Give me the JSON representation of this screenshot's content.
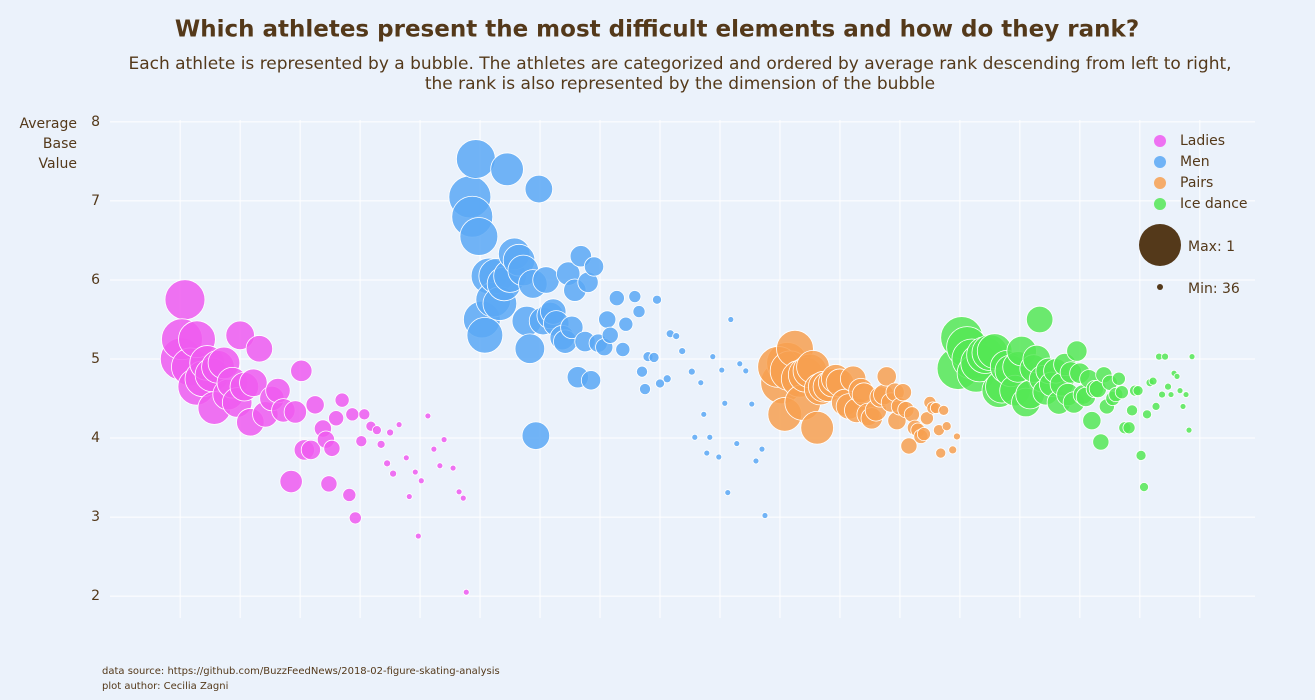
{
  "chart_data": {
    "type": "bubble",
    "title": "Which athletes present the most difficult elements and how do they rank?",
    "subtitle": [
      "Each athlete is represented by a bubble. The athletes are categorized and ordered by average rank descending from left to right,",
      "the rank is also represented by the dimension of the bubble"
    ],
    "y_label": "Average Base Value",
    "ylim": [
      1.85,
      8.15
    ],
    "yticks": [
      2,
      3,
      4,
      5,
      6,
      7,
      8
    ],
    "xlim": [
      -11.7,
      179.2
    ],
    "xticks": [
      0,
      10,
      20,
      30,
      40,
      50,
      60,
      70,
      80,
      90,
      100,
      110,
      120,
      130,
      140,
      150,
      160,
      170
    ],
    "grid": true,
    "legend": "top-right",
    "size_legend": [
      {
        "value": 1,
        "label": "Max: 1"
      },
      {
        "value": 36,
        "label": "Min: 36"
      }
    ],
    "size_color": "#54391a",
    "notes": [
      "data source: https://github.com/BuzzFeedNews/2018-02-figure-skating-analysis",
      "plot author: Cecilia Zagni"
    ],
    "series": [
      {
        "name": "Ladies",
        "color": "#ef5bf0",
        "x": [
          0.2,
          0.8,
          0.3,
          1.7,
          2.8,
          2.7,
          3.8,
          4.5,
          5.3,
          5.7,
          6.3,
          7.3,
          8.0,
          8.7,
          9.5,
          10.0,
          10.7,
          11.7,
          12.2,
          13.2,
          14.2,
          15.3,
          16.3,
          17.2,
          18.5,
          19.2,
          20.2,
          20.7,
          21.8,
          22.5,
          23.8,
          24.3,
          24.8,
          25.3,
          26.0,
          27.0,
          28.2,
          28.7,
          29.2,
          30.2,
          30.7,
          31.8,
          32.8,
          33.5,
          34.5,
          35.0,
          35.5,
          36.5,
          37.7,
          38.2,
          39.2,
          39.7,
          40.2,
          41.3,
          42.3,
          43.3,
          44.0,
          45.5,
          46.5,
          47.2,
          47.7
        ],
        "values": [
          5.0,
          5.75,
          5.25,
          4.9,
          5.25,
          4.65,
          4.75,
          4.95,
          4.8,
          4.38,
          4.9,
          4.95,
          4.55,
          4.7,
          4.45,
          5.3,
          4.65,
          4.2,
          4.7,
          5.13,
          4.3,
          4.5,
          4.6,
          4.35,
          3.45,
          4.33,
          4.85,
          3.85,
          3.85,
          4.42,
          4.12,
          3.98,
          3.42,
          3.87,
          4.25,
          4.48,
          3.28,
          4.3,
          2.99,
          3.96,
          4.3,
          4.15,
          4.1,
          3.92,
          3.68,
          4.07,
          3.55,
          4.17,
          3.75,
          3.26,
          3.57,
          2.76,
          3.46,
          4.28,
          3.86,
          3.65,
          3.98,
          3.62,
          3.32,
          3.24,
          2.05
        ],
        "size": [
          1,
          3,
          2,
          5,
          6,
          6,
          7,
          8,
          9,
          10,
          10,
          11,
          12,
          12,
          13,
          14,
          14,
          15,
          15,
          16,
          17,
          18,
          18,
          19,
          20,
          20,
          21,
          22,
          23,
          24,
          25,
          25,
          26,
          26,
          27,
          28,
          29,
          29,
          30,
          31,
          31,
          32,
          33,
          34,
          35,
          35,
          35,
          36,
          36,
          36,
          36,
          36,
          36,
          36,
          36,
          36,
          36,
          36,
          36,
          36,
          36
        ]
      },
      {
        "name": "Men",
        "color": "#5ba8f5",
        "x": [
          48.3,
          48.7,
          49.3,
          49.8,
          50.3,
          50.8,
          51.5,
          52.2,
          52.7,
          53.3,
          54.0,
          54.5,
          55.0,
          55.7,
          56.5,
          57.2,
          57.8,
          58.3,
          58.8,
          59.8,
          59.3,
          60.5,
          61.0,
          61.7,
          62.2,
          62.7,
          63.7,
          64.2,
          64.7,
          65.3,
          65.8,
          66.3,
          66.8,
          67.5,
          68.0,
          68.5,
          69.0,
          69.7,
          70.7,
          71.2,
          71.7,
          72.8,
          73.8,
          74.3,
          75.8,
          76.5,
          77.0,
          77.5,
          78.0,
          79.0,
          79.5,
          80.0,
          81.2,
          81.7,
          82.7,
          83.7,
          85.3,
          85.8,
          86.8,
          87.3,
          87.8,
          88.3,
          88.8,
          89.8,
          90.3,
          90.8,
          91.3,
          91.8,
          92.8,
          93.3,
          94.3,
          95.3,
          96.0,
          97.0,
          97.5
        ],
        "values": [
          7.05,
          6.8,
          7.53,
          6.55,
          5.5,
          5.3,
          6.05,
          5.75,
          6.05,
          5.7,
          5.95,
          7.4,
          6.05,
          6.33,
          6.25,
          6.12,
          5.48,
          5.13,
          5.95,
          7.15,
          4.03,
          5.48,
          6.0,
          5.55,
          5.6,
          5.45,
          5.27,
          5.22,
          6.08,
          5.4,
          5.87,
          4.77,
          6.3,
          5.22,
          5.97,
          4.73,
          6.17,
          5.2,
          5.15,
          5.5,
          5.3,
          5.77,
          5.12,
          5.44,
          5.79,
          5.6,
          4.84,
          4.62,
          5.03,
          5.02,
          5.75,
          4.69,
          4.75,
          5.32,
          5.29,
          5.1,
          4.84,
          4.01,
          4.7,
          4.3,
          3.81,
          4.01,
          5.03,
          3.76,
          4.86,
          4.44,
          3.31,
          5.5,
          3.93,
          4.94,
          4.85,
          4.43,
          3.71,
          3.86,
          3.02
        ],
        "size": [
          1,
          2,
          4,
          5,
          6,
          7,
          7,
          8,
          8,
          9,
          9,
          10,
          10,
          11,
          11,
          12,
          13,
          13,
          14,
          15,
          15,
          15,
          16,
          16,
          17,
          17,
          18,
          19,
          19,
          20,
          20,
          21,
          21,
          22,
          22,
          23,
          23,
          24,
          25,
          25,
          26,
          27,
          28,
          28,
          30,
          30,
          31,
          31,
          32,
          32,
          33,
          33,
          34,
          34,
          35,
          35,
          35,
          36,
          36,
          36,
          36,
          36,
          36,
          36,
          36,
          36,
          36,
          36,
          36,
          36,
          36,
          36,
          36,
          36,
          36
        ]
      },
      {
        "name": "Pairs",
        "color": "#f7a050",
        "x": [
          100.3,
          101.2,
          99.7,
          101.7,
          102.5,
          100.8,
          103.3,
          103.8,
          104.3,
          105.0,
          105.5,
          106.2,
          106.7,
          107.3,
          108.0,
          108.8,
          109.3,
          110.0,
          110.8,
          111.5,
          112.2,
          112.8,
          113.5,
          114.0,
          114.7,
          115.3,
          116.0,
          116.7,
          117.3,
          117.8,
          118.5,
          119.2,
          119.5,
          120.0,
          120.5,
          121.0,
          121.5,
          122.0,
          122.5,
          123.0,
          123.5,
          124.0,
          124.5,
          125.0,
          125.5,
          126.0,
          126.5,
          126.8,
          127.3,
          127.8,
          128.8,
          129.5
        ],
        "values": [
          4.7,
          4.95,
          4.9,
          4.85,
          5.13,
          4.3,
          4.75,
          4.45,
          4.8,
          4.85,
          4.9,
          4.13,
          4.62,
          4.65,
          4.65,
          4.7,
          4.75,
          4.7,
          4.45,
          4.4,
          4.75,
          4.35,
          4.6,
          4.55,
          4.3,
          4.25,
          4.35,
          4.52,
          4.55,
          4.78,
          4.45,
          4.58,
          4.22,
          4.4,
          4.58,
          4.36,
          3.9,
          4.3,
          4.13,
          4.1,
          4.02,
          4.05,
          4.25,
          4.45,
          4.38,
          4.38,
          4.1,
          3.81,
          4.35,
          4.15,
          3.85,
          4.02
        ],
        "size": [
          1,
          2,
          2,
          3,
          6,
          9,
          6,
          7,
          8,
          9,
          10,
          10,
          11,
          12,
          13,
          14,
          14,
          15,
          16,
          17,
          17,
          18,
          18,
          19,
          20,
          21,
          21,
          22,
          22,
          23,
          23,
          24,
          24,
          25,
          25,
          26,
          26,
          27,
          27,
          28,
          28,
          29,
          29,
          30,
          30,
          31,
          31,
          32,
          32,
          33,
          34,
          35
        ]
      },
      {
        "name": "Ice dance",
        "color": "#55e855",
        "x": [
          129.7,
          130.3,
          131.2,
          132.0,
          132.7,
          133.3,
          134.2,
          135.0,
          135.8,
          136.5,
          137.0,
          137.8,
          138.5,
          139.2,
          139.7,
          140.3,
          141.0,
          141.7,
          142.3,
          142.8,
          143.3,
          143.8,
          144.3,
          144.8,
          145.3,
          146.0,
          146.5,
          147.0,
          147.5,
          148.0,
          148.5,
          149.0,
          149.5,
          150.0,
          150.5,
          151.0,
          151.5,
          152.0,
          152.5,
          153.0,
          153.5,
          154.0,
          154.5,
          155.0,
          155.5,
          156.0,
          156.5,
          157.0,
          157.5,
          158.2,
          158.7,
          159.2,
          159.7,
          160.2,
          160.7,
          161.2,
          161.7,
          162.2,
          162.7,
          163.2,
          163.7,
          164.2,
          164.7,
          165.2,
          165.7,
          166.2,
          166.7,
          167.2,
          167.7,
          168.2,
          168.7
        ],
        "values": [
          4.88,
          5.27,
          5.15,
          5.0,
          4.82,
          4.95,
          5.05,
          5.08,
          5.1,
          4.6,
          4.65,
          4.9,
          4.85,
          4.6,
          4.9,
          5.1,
          4.45,
          4.55,
          4.88,
          5.0,
          5.5,
          4.75,
          4.58,
          4.85,
          4.68,
          4.85,
          4.45,
          4.68,
          4.93,
          4.55,
          4.83,
          4.45,
          5.1,
          4.82,
          4.55,
          4.52,
          4.75,
          4.22,
          4.62,
          4.62,
          3.95,
          4.8,
          4.4,
          4.7,
          4.5,
          4.55,
          4.75,
          4.58,
          4.13,
          4.13,
          4.35,
          4.6,
          4.6,
          3.78,
          3.38,
          4.3,
          4.7,
          4.72,
          4.4,
          5.03,
          4.55,
          5.03,
          4.65,
          4.55,
          4.82,
          4.78,
          4.6,
          4.4,
          4.55,
          4.1,
          5.03
        ],
        "size": [
          1,
          1,
          2,
          3,
          5,
          5,
          6,
          7,
          8,
          9,
          10,
          10,
          11,
          12,
          12,
          13,
          14,
          14,
          15,
          15,
          16,
          16,
          17,
          17,
          18,
          18,
          19,
          19,
          20,
          20,
          21,
          21,
          22,
          22,
          23,
          23,
          24,
          24,
          25,
          25,
          26,
          26,
          27,
          27,
          28,
          28,
          29,
          29,
          30,
          30,
          31,
          31,
          32,
          32,
          33,
          33,
          34,
          34,
          34,
          35,
          35,
          35,
          35,
          36,
          36,
          36,
          36,
          36,
          36,
          36,
          36
        ]
      }
    ]
  }
}
